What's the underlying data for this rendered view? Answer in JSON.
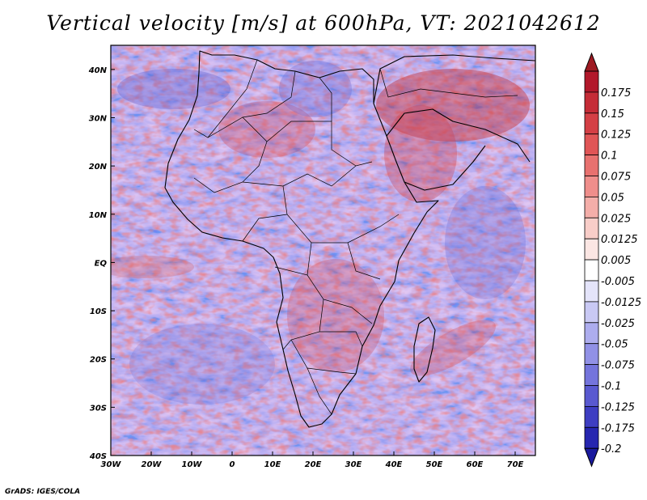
{
  "title": "Vertical velocity [m/s] at 600hPa, VT: 2021042612",
  "footer": "GrADS: IGES/COLA",
  "map": {
    "region": "Africa and Arabian Peninsula",
    "projection": "lat-lon",
    "lon_range": [
      -30,
      75
    ],
    "lat_range": [
      -40,
      45
    ],
    "lat_ticks": [
      {
        "value": 40,
        "label": "40N"
      },
      {
        "value": 30,
        "label": "30N"
      },
      {
        "value": 20,
        "label": "20N"
      },
      {
        "value": 10,
        "label": "10N"
      },
      {
        "value": 0,
        "label": "EQ"
      },
      {
        "value": -10,
        "label": "10S"
      },
      {
        "value": -20,
        "label": "20S"
      },
      {
        "value": -30,
        "label": "30S"
      },
      {
        "value": -40,
        "label": "40S"
      }
    ],
    "lon_ticks": [
      {
        "value": -30,
        "label": "30W"
      },
      {
        "value": -20,
        "label": "20W"
      },
      {
        "value": -10,
        "label": "10W"
      },
      {
        "value": 0,
        "label": "0"
      },
      {
        "value": 10,
        "label": "10E"
      },
      {
        "value": 20,
        "label": "20E"
      },
      {
        "value": 30,
        "label": "30E"
      },
      {
        "value": 40,
        "label": "40E"
      },
      {
        "value": 50,
        "label": "50E"
      },
      {
        "value": 60,
        "label": "60E"
      },
      {
        "value": 70,
        "label": "70E"
      }
    ]
  },
  "colorbar": {
    "levels": [
      {
        "label": "0.175",
        "color": "#b2182b"
      },
      {
        "label": "0.15",
        "color": "#c52c37"
      },
      {
        "label": "0.125",
        "color": "#d43f45"
      },
      {
        "label": "0.1",
        "color": "#e05556"
      },
      {
        "label": "0.075",
        "color": "#e8716f"
      },
      {
        "label": "0.05",
        "color": "#ef8e8b"
      },
      {
        "label": "0.025",
        "color": "#f4aea9"
      },
      {
        "label": "0.0125",
        "color": "#f8cdc8"
      },
      {
        "label": "0.005",
        "color": "#fbe6e3"
      },
      {
        "label": "-0.005",
        "color": "#ffffff"
      },
      {
        "label": "-0.0125",
        "color": "#e4e4fa"
      },
      {
        "label": "-0.025",
        "color": "#c9c9f4"
      },
      {
        "label": "-0.05",
        "color": "#adadee"
      },
      {
        "label": "-0.075",
        "color": "#9191e6"
      },
      {
        "label": "-0.1",
        "color": "#7474dc"
      },
      {
        "label": "-0.125",
        "color": "#5959d0"
      },
      {
        "label": "-0.175",
        "color": "#3e3ec2"
      },
      {
        "label": "-0.2",
        "color": "#2626b0"
      }
    ],
    "over_color": "#9e1a22",
    "under_color": "#1a1a9e"
  }
}
